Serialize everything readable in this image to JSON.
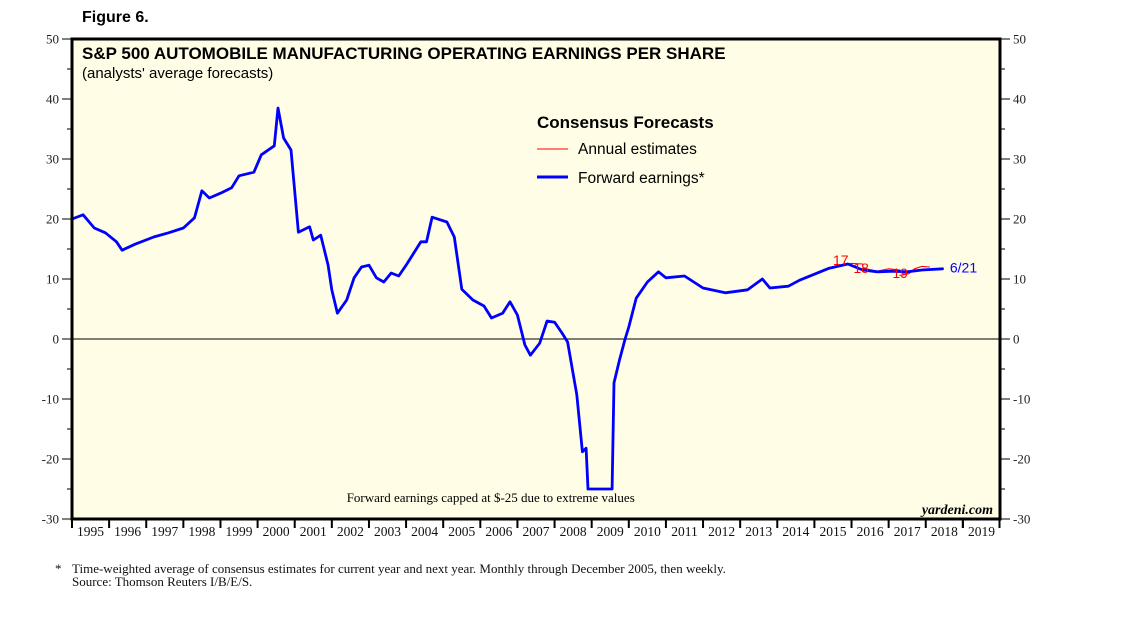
{
  "figure_label": "Figure 6.",
  "chart_data": {
    "type": "line",
    "title": "S&P 500 AUTOMOBILE MANUFACTURING OPERATING EARNINGS PER SHARE",
    "subtitle": "(analysts' average forecasts)",
    "xlabel": "",
    "ylabel": "",
    "ylim": [
      -30,
      50
    ],
    "xlim": [
      1995,
      2020
    ],
    "y_ticks": [
      50,
      40,
      30,
      20,
      10,
      0,
      -10,
      -20,
      -30
    ],
    "y_tick_labels": [
      "50",
      "40",
      "30",
      "20",
      "10",
      "0",
      "-10",
      "-20",
      "-30"
    ],
    "x_tick_labels": [
      "1995",
      "1996",
      "1997",
      "1998",
      "1999",
      "2000",
      "2001",
      "2002",
      "2003",
      "2004",
      "2005",
      "2006",
      "2007",
      "2008",
      "2009",
      "2010",
      "2011",
      "2012",
      "2013",
      "2014",
      "2015",
      "2016",
      "2017",
      "2018",
      "2019"
    ],
    "grid": false,
    "zero_line": true,
    "legend": {
      "title": "Consensus Forecasts",
      "placement": "top-center",
      "entries": [
        {
          "label": "Annual estimates",
          "color": "#ff0000"
        },
        {
          "label": "Forward earnings*",
          "color": "#0000ff"
        }
      ]
    },
    "series": [
      {
        "name": "Forward earnings*",
        "color": "#0000ff",
        "x": [
          1995.0,
          1995.3,
          1995.6,
          1995.9,
          1996.2,
          1996.35,
          1996.7,
          1997.2,
          1997.6,
          1998.0,
          1998.3,
          1998.5,
          1998.7,
          1999.0,
          1999.3,
          1999.5,
          1999.9,
          2000.1,
          2000.45,
          2000.55,
          2000.7,
          2000.9,
          2001.1,
          2001.4,
          2001.5,
          2001.7,
          2001.9,
          2002.0,
          2002.15,
          2002.4,
          2002.6,
          2002.8,
          2003.0,
          2003.2,
          2003.4,
          2003.6,
          2003.8,
          2004.0,
          2004.4,
          2004.55,
          2004.7,
          2005.1,
          2005.3,
          2005.5,
          2005.8,
          2006.1,
          2006.3,
          2006.6,
          2006.8,
          2007.0,
          2007.2,
          2007.35,
          2007.6,
          2007.8,
          2008.0,
          2008.2,
          2008.35,
          2008.6,
          2008.75,
          2008.85,
          2008.9,
          2009.55,
          2009.6,
          2009.75,
          2009.9,
          2010.0,
          2010.2,
          2010.5,
          2010.8,
          2011.0,
          2011.5,
          2012.0,
          2012.6,
          2013.2,
          2013.6,
          2013.8,
          2014.3,
          2014.6,
          2015.0,
          2015.4,
          2015.9,
          2016.3,
          2016.7,
          2017.1,
          2017.5,
          2017.9,
          2018.45
        ],
        "values": [
          20.0,
          20.7,
          18.5,
          17.7,
          16.2,
          14.8,
          15.8,
          17.0,
          17.7,
          18.5,
          20.2,
          24.7,
          23.5,
          24.3,
          25.2,
          27.2,
          27.8,
          30.7,
          32.2,
          38.5,
          33.5,
          31.5,
          17.8,
          18.7,
          16.5,
          17.3,
          12.3,
          8.2,
          4.3,
          6.5,
          10.2,
          12.0,
          12.3,
          10.2,
          9.5,
          11.0,
          10.5,
          12.3,
          16.2,
          16.2,
          20.3,
          19.5,
          17.0,
          8.3,
          6.5,
          5.5,
          3.5,
          4.3,
          6.2,
          4.0,
          -1.0,
          -2.7,
          -0.7,
          3.0,
          2.8,
          1.0,
          -0.5,
          -9.3,
          -18.8,
          -18.2,
          -25.0,
          -25.0,
          -7.3,
          -3.5,
          0.0,
          2.0,
          6.8,
          9.5,
          11.2,
          10.2,
          10.5,
          8.5,
          7.7,
          8.2,
          10.0,
          8.5,
          8.8,
          9.8,
          10.8,
          11.8,
          12.5,
          11.5,
          11.2,
          11.3,
          11.2,
          11.5,
          11.7
        ]
      },
      {
        "name": "Annual estimates 2017",
        "color": "#ff0000",
        "x": [
          2015.75,
          2016.0,
          2016.3
        ],
        "values": [
          12.4,
          12.6,
          12.5
        ]
      },
      {
        "name": "Annual estimates 2018",
        "color": "#ff0000",
        "x": [
          2016.3,
          2016.7,
          2017.0,
          2017.3
        ],
        "values": [
          11.8,
          11.3,
          11.7,
          11.5
        ]
      },
      {
        "name": "Annual estimates 2019",
        "color": "#ff0000",
        "x": [
          2017.3,
          2017.55,
          2017.7,
          2017.9,
          2018.1
        ],
        "values": [
          10.6,
          10.9,
          11.7,
          12.1,
          12.0
        ]
      }
    ],
    "annotations": [
      {
        "text": "17",
        "color": "#ff0000",
        "x": 2015.5,
        "y": 12.3
      },
      {
        "text": "18",
        "color": "#ff0000",
        "x": 2016.05,
        "y": 11.0
      },
      {
        "text": "19",
        "color": "#ff0000",
        "x": 2017.1,
        "y": 10.2
      },
      {
        "text": "6/21",
        "color": "#0000ff",
        "x": 2018.65,
        "y": 11.1
      },
      {
        "text": "Forward earnings capped at $-25 due to extreme values",
        "color": "#000000",
        "x": 2002.4,
        "y": -27.2
      }
    ]
  },
  "brand": "yardeni.com",
  "footnote": {
    "star": "*",
    "line1": "Time-weighted average of consensus estimates for current year and next year. Monthly through December 2005, then weekly.",
    "line2": "Source: Thomson Reuters I/B/E/S."
  },
  "colors": {
    "plot_background": "#fffde5",
    "forward_line": "#0000ff",
    "annual_line": "#ff0000",
    "frame": "#000000"
  }
}
